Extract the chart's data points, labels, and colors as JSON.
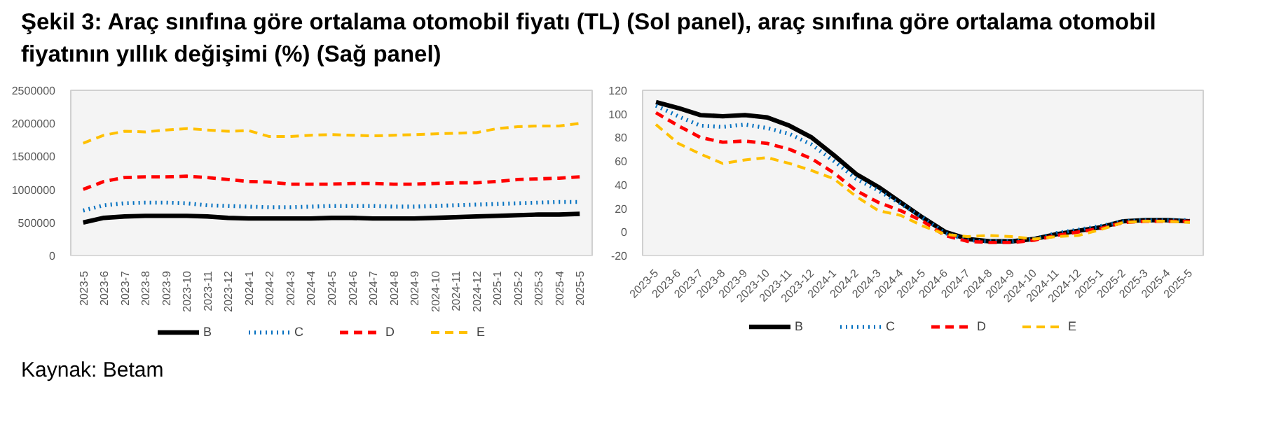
{
  "chart_data": [
    {
      "type": "line",
      "title": "Şekil 3: Araç sınıfına göre ortalama otomobil fiyatı (TL) (Sol panel), araç sınıfına göre ortalama otomobil fiyatının yıllık değişimi (%) (Sağ panel)",
      "annotations": [
        "Kaynak: Betam"
      ],
      "categories": [
        "2023-5",
        "2023-6",
        "2023-7",
        "2023-8",
        "2023-9",
        "2023-10",
        "2023-11",
        "2023-12",
        "2024-1",
        "2024-2",
        "2024-3",
        "2024-4",
        "2024-5",
        "2024-6",
        "2024-7",
        "2024-8",
        "2024-9",
        "2024-10",
        "2024-11",
        "2024-12",
        "2025-1",
        "2025-2",
        "2025-3",
        "2025-4",
        "2025-5"
      ],
      "ylim": [
        0,
        2500000
      ],
      "yticks": [
        0,
        500000,
        1000000,
        1500000,
        2000000,
        2500000
      ],
      "grid": false,
      "legend": "bottom",
      "series": [
        {
          "name": "B",
          "color": "#000000",
          "line_style": "solid",
          "values": [
            500000,
            570000,
            590000,
            600000,
            600000,
            600000,
            590000,
            570000,
            560000,
            560000,
            560000,
            560000,
            570000,
            570000,
            560000,
            560000,
            560000,
            570000,
            580000,
            590000,
            600000,
            610000,
            620000,
            620000,
            630000
          ]
        },
        {
          "name": "C",
          "color": "#0070c0",
          "line_style": "dotted",
          "values": [
            680000,
            760000,
            790000,
            800000,
            800000,
            790000,
            760000,
            750000,
            740000,
            730000,
            730000,
            740000,
            750000,
            750000,
            750000,
            740000,
            740000,
            750000,
            760000,
            770000,
            780000,
            790000,
            800000,
            810000,
            810000
          ]
        },
        {
          "name": "D",
          "color": "#ff0000",
          "line_style": "dashed",
          "values": [
            1000000,
            1120000,
            1180000,
            1190000,
            1190000,
            1200000,
            1180000,
            1150000,
            1120000,
            1110000,
            1080000,
            1080000,
            1080000,
            1090000,
            1090000,
            1080000,
            1080000,
            1090000,
            1100000,
            1100000,
            1120000,
            1150000,
            1160000,
            1170000,
            1190000
          ]
        },
        {
          "name": "E",
          "color": "#ffc000",
          "line_style": "dashed",
          "values": [
            1700000,
            1820000,
            1880000,
            1870000,
            1900000,
            1920000,
            1900000,
            1880000,
            1890000,
            1800000,
            1800000,
            1820000,
            1830000,
            1820000,
            1810000,
            1820000,
            1830000,
            1840000,
            1850000,
            1860000,
            1920000,
            1950000,
            1960000,
            1960000,
            2000000
          ]
        }
      ]
    },
    {
      "type": "line",
      "categories": [
        "2023-5",
        "2023-6",
        "2023-7",
        "2023-8",
        "2023-9",
        "2023-10",
        "2023-11",
        "2023-12",
        "2024-1",
        "2024-2",
        "2024-3",
        "2024-4",
        "2024-5",
        "2024-6",
        "2024-7",
        "2024-8",
        "2024-9",
        "2024-10",
        "2024-11",
        "2024-12",
        "2025-1",
        "2025-2",
        "2025-3",
        "2025-4",
        "2025-5"
      ],
      "ylim": [
        -20,
        120
      ],
      "yticks": [
        -20,
        0,
        20,
        40,
        60,
        80,
        100,
        120
      ],
      "grid": false,
      "legend": "bottom",
      "series": [
        {
          "name": "B",
          "color": "#000000",
          "line_style": "solid",
          "values": [
            110,
            105,
            99,
            98,
            99,
            97,
            90,
            80,
            65,
            49,
            38,
            25,
            12,
            0,
            -6,
            -8,
            -8,
            -6,
            -2,
            1,
            4,
            9,
            10,
            10,
            9
          ]
        },
        {
          "name": "C",
          "color": "#0070c0",
          "line_style": "dotted",
          "values": [
            107,
            98,
            90,
            89,
            91,
            88,
            83,
            74,
            60,
            45,
            35,
            24,
            12,
            -1,
            -7,
            -8,
            -8,
            -6,
            -1,
            2,
            5,
            9,
            10,
            10,
            10
          ]
        },
        {
          "name": "D",
          "color": "#ff0000",
          "line_style": "dashed",
          "values": [
            101,
            90,
            80,
            76,
            77,
            75,
            70,
            62,
            50,
            35,
            25,
            18,
            9,
            -3,
            -8,
            -9,
            -9,
            -7,
            -3,
            0,
            3,
            8,
            9,
            9,
            9
          ]
        },
        {
          "name": "E",
          "color": "#ffc000",
          "line_style": "dashed",
          "values": [
            91,
            75,
            66,
            58,
            61,
            63,
            58,
            52,
            45,
            30,
            18,
            14,
            5,
            -2,
            -4,
            -3,
            -4,
            -6,
            -4,
            -3,
            2,
            8,
            9,
            9,
            8
          ]
        }
      ]
    }
  ]
}
